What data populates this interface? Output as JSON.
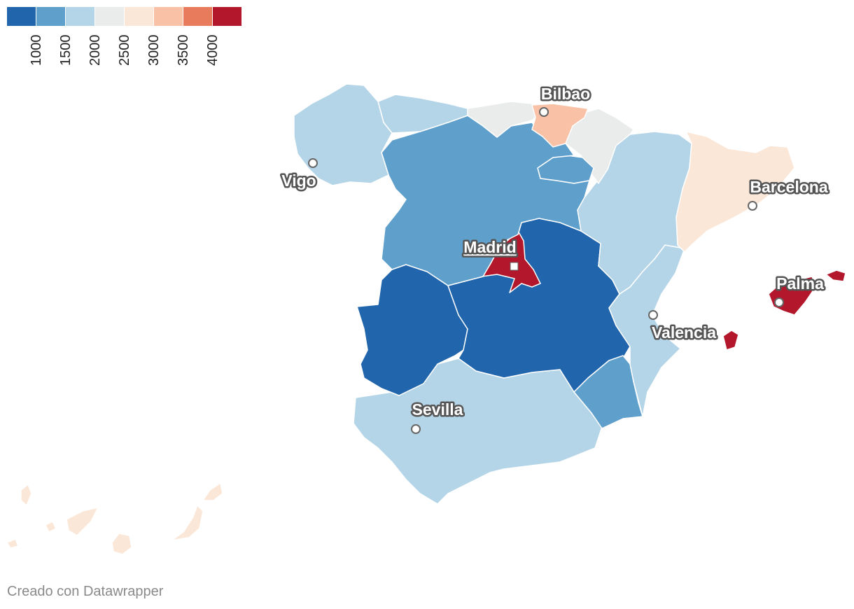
{
  "legend": {
    "colors": [
      "#2166ac",
      "#5f9fcb",
      "#b4d5e7",
      "#e9eceb",
      "#fbe7d8",
      "#f9c1a6",
      "#e77b5c",
      "#b2172b"
    ],
    "ticks": [
      "1000",
      "1500",
      "2000",
      "2500",
      "3000",
      "3500",
      "4000"
    ]
  },
  "regions": [
    {
      "name": "Galicia",
      "color": "#b4d5e7"
    },
    {
      "name": "Asturias",
      "color": "#b4d5e7"
    },
    {
      "name": "Cantabria",
      "color": "#e9eceb"
    },
    {
      "name": "Pais Vasco",
      "color": "#f9c1a6"
    },
    {
      "name": "Navarra",
      "color": "#e9eceb"
    },
    {
      "name": "Castilla y Leon",
      "color": "#5f9fcb"
    },
    {
      "name": "La Rioja",
      "color": "#5f9fcb"
    },
    {
      "name": "Aragon",
      "color": "#b4d5e7"
    },
    {
      "name": "Cataluna",
      "color": "#fbe7d8"
    },
    {
      "name": "Madrid",
      "color": "#b2172b"
    },
    {
      "name": "Extremadura",
      "color": "#2166ac"
    },
    {
      "name": "Castilla-La Mancha",
      "color": "#2166ac"
    },
    {
      "name": "Comunidad Valenciana",
      "color": "#b4d5e7"
    },
    {
      "name": "Murcia",
      "color": "#5f9fcb"
    },
    {
      "name": "Andalucia",
      "color": "#b4d5e7"
    },
    {
      "name": "Islas Baleares",
      "color": "#b2172b"
    },
    {
      "name": "Canarias",
      "color": "#fbe7d8"
    }
  ],
  "cities": {
    "bilbao": "Bilbao",
    "vigo": "Vigo",
    "barcelona": "Barcelona",
    "madrid": "Madrid",
    "palma": "Palma",
    "valencia": "Valencia",
    "sevilla": "Sevilla"
  },
  "footer": "Creado con Datawrapper"
}
